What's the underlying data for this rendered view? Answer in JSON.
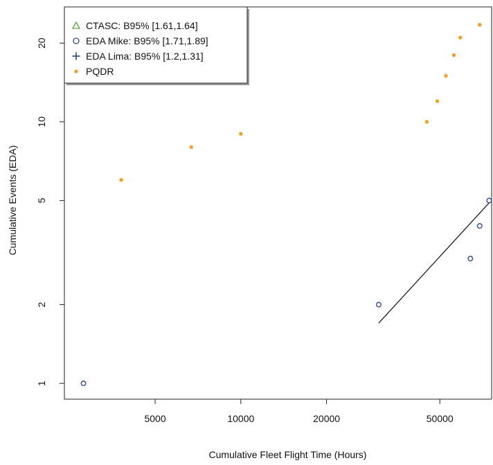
{
  "chart_data": {
    "type": "scatter",
    "title": "",
    "xlabel": "Cumulative Fleet Flight Time (Hours)",
    "ylabel": "Cumulative Events (EDA)",
    "xscale": "log",
    "yscale": "log",
    "xlim": [
      2400,
      76000
    ],
    "ylim": [
      0.87,
      27.5
    ],
    "grid": false,
    "legend_position": "top-left",
    "x_ticks": [
      {
        "value": 5000,
        "label": "5000"
      },
      {
        "value": 10000,
        "label": "10000"
      },
      {
        "value": 20000,
        "label": "20000"
      },
      {
        "value": 50000,
        "label": "50000"
      }
    ],
    "y_ticks": [
      {
        "value": 1,
        "label": "1"
      },
      {
        "value": 2,
        "label": "2"
      },
      {
        "value": 5,
        "label": "5"
      },
      {
        "value": 10,
        "label": "10"
      },
      {
        "value": 20,
        "label": "20"
      }
    ],
    "legend": [
      {
        "label": "CTASC: B95% [1.61,1.64]",
        "marker": "triangle",
        "color": "#5aaa3c"
      },
      {
        "label": "EDA Mike: B95% [1.71,1.89]",
        "marker": "circle",
        "color": "#2b47a8"
      },
      {
        "label": "EDA Lima: B95% [1.2,1.31]",
        "marker": "plus",
        "color": "#2b3f97"
      },
      {
        "label": "PQDR",
        "marker": "dot",
        "color": "#f5a020"
      }
    ],
    "series": [
      {
        "name": "EDA Mike: B95% [1.71,1.89]",
        "marker": "circle",
        "color": "#2b47a8",
        "points": [
          {
            "x": 2800,
            "y": 1
          },
          {
            "x": 30500,
            "y": 2
          },
          {
            "x": 64000,
            "y": 3
          },
          {
            "x": 69000,
            "y": 4
          },
          {
            "x": 74500,
            "y": 5
          }
        ]
      },
      {
        "name": "PQDR",
        "marker": "dot",
        "color": "#f5a020",
        "points": [
          {
            "x": 3800,
            "y": 6
          },
          {
            "x": 6700,
            "y": 8
          },
          {
            "x": 10000,
            "y": 9
          },
          {
            "x": 45000,
            "y": 10
          },
          {
            "x": 49000,
            "y": 12
          },
          {
            "x": 52500,
            "y": 15
          },
          {
            "x": 56000,
            "y": 18
          },
          {
            "x": 59000,
            "y": 21
          },
          {
            "x": 69000,
            "y": 23.5
          }
        ]
      }
    ],
    "fit_line": {
      "color": "#111111",
      "from": {
        "x": 30500,
        "y": 1.7
      },
      "to": {
        "x": 74500,
        "y": 4.9
      }
    }
  }
}
